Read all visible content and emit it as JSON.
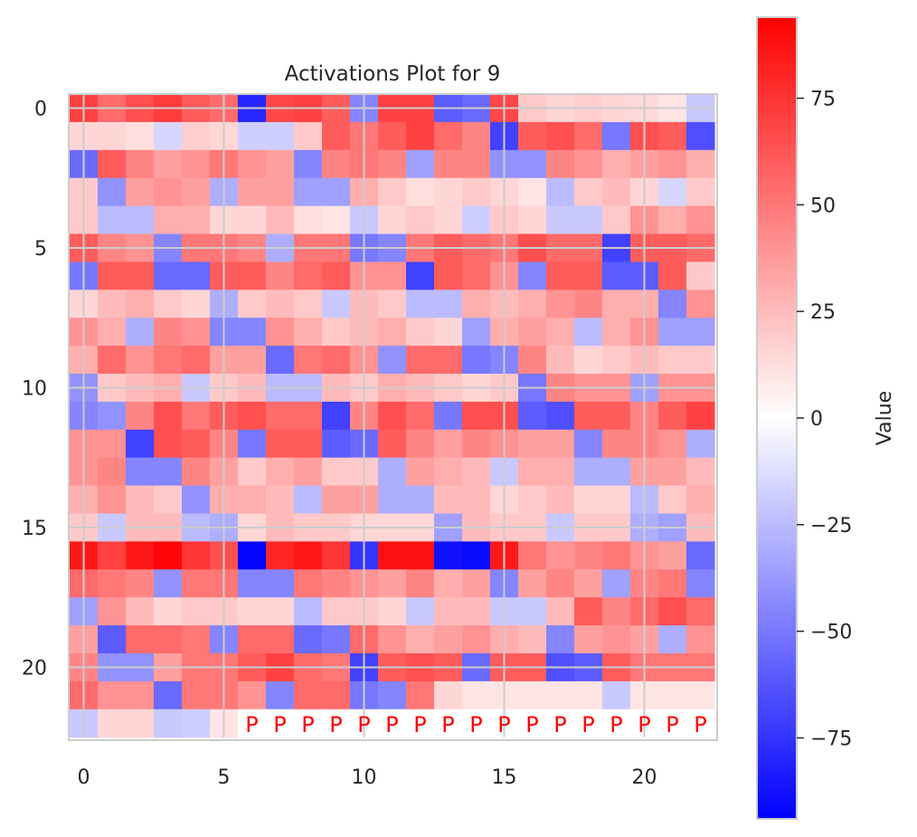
{
  "chart_data": {
    "type": "heatmap",
    "title": "Activations Plot for 9",
    "xlabel": "",
    "ylabel": "",
    "rows": 23,
    "cols": 23,
    "x_ticks": [
      0,
      5,
      10,
      15,
      20
    ],
    "y_ticks": [
      0,
      5,
      10,
      15,
      20
    ],
    "grid": true,
    "colormap": "bwr",
    "colors": {
      "low": "#0000ff",
      "mid": "#ffffff",
      "high": "#ff0000",
      "grid": "#cccccc",
      "pad_text": "#ff0000"
    },
    "colorbar": {
      "label": "Value",
      "min": -94,
      "max": 94,
      "ticks": [
        75,
        50,
        25,
        0,
        -25,
        -50,
        -75
      ]
    },
    "pad_label": "P",
    "pad_cells": {
      "row": 22,
      "from_col": 6,
      "to_col": 22
    },
    "values": [
      [
        70,
        55,
        65,
        72,
        60,
        55,
        -80,
        68,
        70,
        60,
        -45,
        70,
        70,
        -60,
        -55,
        68,
        20,
        15,
        18,
        15,
        14,
        10,
        -20
      ],
      [
        15,
        15,
        12,
        -15,
        18,
        15,
        -18,
        -18,
        20,
        60,
        50,
        60,
        70,
        55,
        45,
        -70,
        60,
        65,
        55,
        -50,
        65,
        60,
        -65
      ],
      [
        -55,
        60,
        45,
        35,
        40,
        50,
        40,
        35,
        -45,
        45,
        50,
        45,
        -35,
        45,
        45,
        -40,
        -40,
        45,
        40,
        30,
        35,
        40,
        30
      ],
      [
        20,
        -40,
        35,
        40,
        35,
        -30,
        35,
        35,
        -35,
        -35,
        30,
        20,
        12,
        15,
        20,
        15,
        10,
        -25,
        20,
        25,
        15,
        -15,
        20
      ],
      [
        20,
        -25,
        -25,
        30,
        30,
        15,
        15,
        25,
        12,
        10,
        -20,
        15,
        20,
        15,
        -18,
        20,
        15,
        -20,
        -20,
        20,
        40,
        30,
        40
      ],
      [
        60,
        45,
        40,
        -45,
        50,
        50,
        45,
        -30,
        50,
        50,
        -50,
        -45,
        50,
        60,
        55,
        50,
        65,
        55,
        55,
        -70,
        60,
        60,
        55
      ],
      [
        -50,
        60,
        60,
        -55,
        -55,
        60,
        60,
        45,
        55,
        60,
        40,
        40,
        -70,
        60,
        55,
        40,
        -45,
        60,
        60,
        -60,
        -60,
        60,
        20
      ],
      [
        15,
        25,
        30,
        20,
        15,
        -30,
        20,
        25,
        20,
        -20,
        25,
        20,
        -25,
        -25,
        30,
        25,
        30,
        40,
        45,
        30,
        30,
        -45,
        40
      ],
      [
        40,
        30,
        -30,
        45,
        40,
        -45,
        -45,
        40,
        30,
        20,
        25,
        30,
        20,
        15,
        -35,
        30,
        35,
        30,
        -25,
        30,
        40,
        -35,
        -35
      ],
      [
        30,
        55,
        40,
        50,
        55,
        35,
        35,
        -55,
        50,
        55,
        40,
        -40,
        55,
        55,
        -50,
        -45,
        45,
        25,
        15,
        20,
        25,
        20,
        20
      ],
      [
        -40,
        20,
        25,
        30,
        -20,
        20,
        25,
        -25,
        -25,
        25,
        20,
        30,
        25,
        20,
        15,
        20,
        -50,
        45,
        40,
        40,
        -35,
        40,
        40
      ],
      [
        -45,
        -40,
        45,
        65,
        50,
        60,
        65,
        55,
        55,
        -70,
        45,
        65,
        55,
        -50,
        65,
        65,
        -60,
        -65,
        60,
        60,
        45,
        60,
        70
      ],
      [
        40,
        40,
        -70,
        65,
        60,
        45,
        -50,
        60,
        60,
        -60,
        -55,
        60,
        45,
        35,
        45,
        40,
        35,
        35,
        -45,
        45,
        45,
        40,
        -30
      ],
      [
        40,
        45,
        -45,
        -45,
        45,
        35,
        20,
        30,
        35,
        20,
        20,
        -30,
        35,
        30,
        25,
        -20,
        30,
        30,
        -30,
        -30,
        35,
        35,
        25
      ],
      [
        30,
        40,
        25,
        20,
        -40,
        30,
        30,
        25,
        -25,
        35,
        35,
        -30,
        -30,
        25,
        25,
        15,
        20,
        25,
        15,
        15,
        -25,
        20,
        30
      ],
      [
        20,
        -20,
        25,
        25,
        -25,
        -30,
        15,
        25,
        20,
        20,
        15,
        15,
        15,
        -35,
        25,
        20,
        20,
        -20,
        20,
        20,
        -30,
        -35,
        25
      ],
      [
        85,
        70,
        85,
        92,
        75,
        65,
        -92,
        80,
        85,
        75,
        -75,
        88,
        88,
        -88,
        -90,
        85,
        50,
        40,
        45,
        50,
        40,
        35,
        -55
      ],
      [
        55,
        50,
        45,
        -40,
        50,
        50,
        -45,
        -45,
        50,
        45,
        40,
        35,
        45,
        30,
        35,
        -45,
        35,
        45,
        35,
        -35,
        45,
        50,
        -45
      ],
      [
        -35,
        40,
        25,
        15,
        20,
        20,
        15,
        15,
        -25,
        20,
        20,
        15,
        -20,
        25,
        25,
        -20,
        -20,
        25,
        60,
        45,
        55,
        65,
        55
      ],
      [
        35,
        -60,
        55,
        55,
        50,
        -45,
        55,
        55,
        -55,
        -50,
        55,
        40,
        30,
        35,
        40,
        30,
        25,
        -45,
        35,
        40,
        35,
        -30,
        40
      ],
      [
        45,
        -40,
        -40,
        35,
        50,
        50,
        60,
        70,
        55,
        50,
        -70,
        60,
        65,
        60,
        -55,
        60,
        60,
        -65,
        -60,
        60,
        50,
        50,
        50
      ],
      [
        55,
        40,
        40,
        -55,
        50,
        50,
        40,
        -45,
        55,
        55,
        -50,
        -45,
        50,
        15,
        10,
        10,
        10,
        10,
        10,
        -20,
        10,
        10,
        10
      ],
      [
        -20,
        15,
        15,
        -20,
        -18,
        10,
        0,
        0,
        0,
        0,
        0,
        0,
        0,
        0,
        0,
        0,
        0,
        0,
        0,
        0,
        0,
        0,
        0
      ]
    ]
  }
}
